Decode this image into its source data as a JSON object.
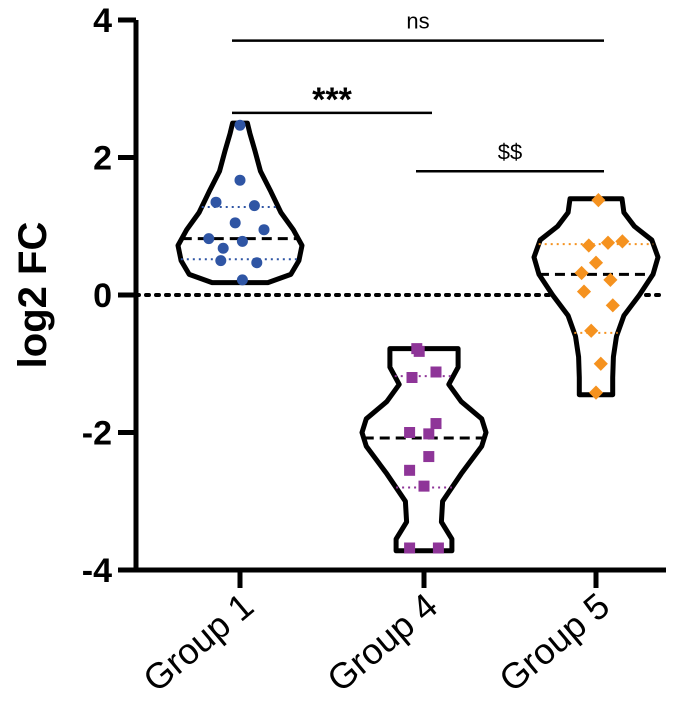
{
  "chart_data": {
    "type": "violin",
    "ylabel": "log2 FC",
    "ylim": [
      -4,
      4
    ],
    "yticks": [
      4,
      2,
      0,
      -2,
      -4
    ],
    "ytick_labels": [
      "4",
      "2",
      "0",
      "-2",
      "-4"
    ],
    "reference_line": 0,
    "categories": [
      "Group 1",
      "Group 4",
      "Group 5"
    ],
    "series": [
      {
        "color": "#2f55a4",
        "marker": "circle",
        "values": [
          2.47,
          1.67,
          1.35,
          1.3,
          1.05,
          0.95,
          0.82,
          0.78,
          0.68,
          0.5,
          0.47,
          0.22
        ],
        "jitter": [
          0,
          0,
          -1.0,
          0.6,
          -0.2,
          1.0,
          -1.3,
          0.1,
          -0.7,
          -0.8,
          0.7,
          0.1
        ],
        "median": 0.82,
        "q1": 0.52,
        "q3": 1.28,
        "violin_min": 0.18,
        "violin_max": 2.5,
        "violin_profile": [
          [
            0.18,
            0.45
          ],
          [
            0.3,
            0.82
          ],
          [
            0.5,
            0.95
          ],
          [
            0.72,
            1.0
          ],
          [
            0.95,
            0.86
          ],
          [
            1.2,
            0.66
          ],
          [
            1.5,
            0.5
          ],
          [
            1.8,
            0.33
          ],
          [
            2.1,
            0.24
          ],
          [
            2.35,
            0.16
          ],
          [
            2.5,
            0.12
          ]
        ]
      },
      {
        "color": "#8e3598",
        "marker": "square",
        "values": [
          -0.78,
          -0.82,
          -1.12,
          -1.2,
          -1.87,
          -2.0,
          -2.02,
          -2.35,
          -2.55,
          -2.78,
          -3.68,
          -3.68
        ],
        "jitter": [
          -0.3,
          -0.2,
          0.5,
          -0.5,
          0.5,
          -0.6,
          0.2,
          0.2,
          -0.6,
          0.0,
          -0.6,
          0.6
        ],
        "median": -2.08,
        "q1": -2.8,
        "q3": -1.18,
        "violin_min": -3.72,
        "violin_max": -0.78,
        "violin_profile": [
          [
            -3.72,
            0.45
          ],
          [
            -3.55,
            0.45
          ],
          [
            -3.3,
            0.28
          ],
          [
            -3.0,
            0.3
          ],
          [
            -2.6,
            0.6
          ],
          [
            -2.2,
            0.93
          ],
          [
            -2.0,
            1.0
          ],
          [
            -1.8,
            0.93
          ],
          [
            -1.55,
            0.6
          ],
          [
            -1.3,
            0.4
          ],
          [
            -1.05,
            0.55
          ],
          [
            -0.78,
            0.55
          ]
        ]
      },
      {
        "color": "#f5921f",
        "marker": "diamond",
        "values": [
          1.38,
          0.78,
          0.76,
          0.72,
          0.47,
          0.32,
          0.22,
          0.05,
          -0.15,
          -0.52,
          -1.0,
          -1.42
        ],
        "jitter": [
          0.1,
          1.1,
          0.5,
          -0.3,
          0.0,
          -0.6,
          0.6,
          -0.5,
          0.7,
          -0.2,
          0.2,
          0.0
        ],
        "median": 0.3,
        "q1": -0.55,
        "q3": 0.74,
        "violin_min": -1.45,
        "violin_max": 1.4,
        "violin_profile": [
          [
            -1.45,
            0.27
          ],
          [
            -1.2,
            0.27
          ],
          [
            -0.9,
            0.28
          ],
          [
            -0.6,
            0.33
          ],
          [
            -0.3,
            0.45
          ],
          [
            0.0,
            0.7
          ],
          [
            0.3,
            0.92
          ],
          [
            0.55,
            1.0
          ],
          [
            0.8,
            0.9
          ],
          [
            1.0,
            0.62
          ],
          [
            1.2,
            0.45
          ],
          [
            1.4,
            0.42
          ]
        ]
      }
    ],
    "significance": [
      {
        "from": 0,
        "to": 2,
        "label": "ns",
        "y": 3.7
      },
      {
        "from": 0,
        "to": 1,
        "label": "***",
        "y": 2.65
      },
      {
        "from": 1,
        "to": 2,
        "label": "$$",
        "y": 1.8
      }
    ]
  }
}
